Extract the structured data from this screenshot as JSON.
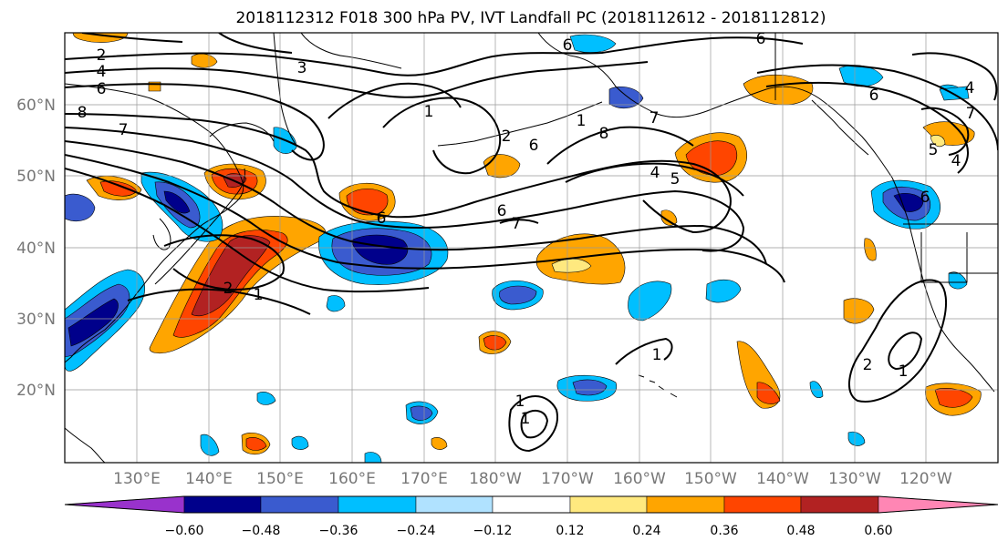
{
  "title": "2018112312 F018 300 hPa PV, IVT Landfall PC (2018112612 - 2018112812)",
  "lat_labels": [
    "60°N",
    "50°N",
    "40°N",
    "30°N",
    "20°N"
  ],
  "lon_labels": [
    "130°E",
    "140°E",
    "150°E",
    "160°E",
    "170°E",
    "180°W",
    "170°W",
    "160°W",
    "150°W",
    "140°W",
    "130°W",
    "120°W"
  ],
  "map_extent": {
    "lon_min": 120,
    "lon_max": 250,
    "lat_min": 10,
    "lat_max": 70
  },
  "pv_contour_labels": [
    "2",
    "4",
    "6",
    "3",
    "8",
    "7",
    "1",
    "2",
    "6",
    "8",
    "1",
    "7",
    "6",
    "4",
    "5",
    "6",
    "6",
    "7",
    "1",
    "2",
    "1",
    "1",
    "2",
    "1",
    "1",
    "6",
    "6",
    "4",
    "7",
    "6",
    "5",
    "4"
  ],
  "colorbar": {
    "ticks": [
      "−0.60",
      "−0.48",
      "−0.36",
      "−0.24",
      "−0.12",
      "0.12",
      "0.24",
      "0.36",
      "0.48",
      "0.60"
    ],
    "colors": [
      "#9932cc",
      "#00008b",
      "#3a5bcf",
      "#00bfff",
      "#b0e2ff",
      "#ffffff",
      "#ffe97f",
      "#ffa500",
      "#ff4500",
      "#b22222",
      "#ff86b4"
    ]
  },
  "colors": {
    "frame": "#000000",
    "grid": "#999999",
    "coast": "#000000",
    "axis_label": "#777777"
  }
}
